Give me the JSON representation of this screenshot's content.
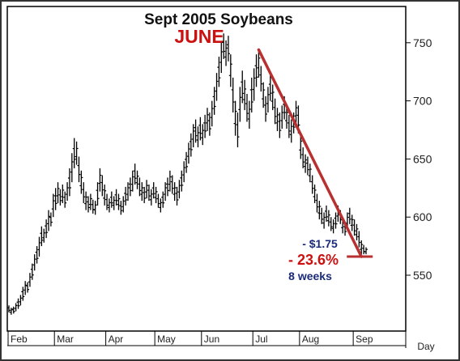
{
  "chart_data": {
    "type": "ohlc",
    "title": "Sept 2005 Soybeans",
    "annotation_month": "JUNE",
    "x_unit_label": "Day",
    "y_ticks": [
      550,
      600,
      650,
      700,
      750
    ],
    "ylim": [
      505,
      765
    ],
    "x_months": [
      "Feb",
      "Mar",
      "Apr",
      "May",
      "Jun",
      "Jul",
      "Aug",
      "Sep"
    ],
    "grid": false,
    "series": [
      {
        "values": [
          {
            "d": "Feb 01",
            "h": 524,
            "l": 518
          },
          {
            "d": "Feb 02",
            "h": 522,
            "l": 516
          },
          {
            "d": "Feb 03",
            "h": 523,
            "l": 517
          },
          {
            "d": "Feb 04",
            "h": 526,
            "l": 519
          },
          {
            "d": "Feb 07",
            "h": 530,
            "l": 521
          },
          {
            "d": "Feb 08",
            "h": 533,
            "l": 524
          },
          {
            "d": "Feb 09",
            "h": 540,
            "l": 528
          },
          {
            "d": "Feb 10",
            "h": 545,
            "l": 533
          },
          {
            "d": "Feb 11",
            "h": 544,
            "l": 535
          },
          {
            "d": "Feb 14",
            "h": 552,
            "l": 540
          },
          {
            "d": "Feb 15",
            "h": 560,
            "l": 546
          },
          {
            "d": "Feb 16",
            "h": 568,
            "l": 554
          },
          {
            "d": "Feb 17",
            "h": 575,
            "l": 560
          },
          {
            "d": "Feb 18",
            "h": 583,
            "l": 566
          },
          {
            "d": "Feb 21",
            "h": 592,
            "l": 575
          },
          {
            "d": "Feb 22",
            "h": 590,
            "l": 578
          },
          {
            "d": "Feb 23",
            "h": 598,
            "l": 582
          },
          {
            "d": "Feb 24",
            "h": 606,
            "l": 588
          },
          {
            "d": "Feb 25",
            "h": 604,
            "l": 592
          },
          {
            "d": "Feb 28",
            "h": 620,
            "l": 600
          },
          {
            "d": "Mar 01",
            "h": 625,
            "l": 606
          },
          {
            "d": "Mar 02",
            "h": 630,
            "l": 612
          },
          {
            "d": "Mar 03",
            "h": 624,
            "l": 610
          },
          {
            "d": "Mar 04",
            "h": 628,
            "l": 612
          },
          {
            "d": "Mar 07",
            "h": 622,
            "l": 608
          },
          {
            "d": "Mar 08",
            "h": 630,
            "l": 614
          },
          {
            "d": "Mar 09",
            "h": 642,
            "l": 618
          },
          {
            "d": "Mar 10",
            "h": 655,
            "l": 630
          },
          {
            "d": "Mar 11",
            "h": 668,
            "l": 642
          },
          {
            "d": "Mar 14",
            "h": 665,
            "l": 645
          },
          {
            "d": "Mar 15",
            "h": 652,
            "l": 630
          },
          {
            "d": "Mar 16",
            "h": 640,
            "l": 620
          },
          {
            "d": "Mar 17",
            "h": 630,
            "l": 612
          },
          {
            "d": "Mar 18",
            "h": 622,
            "l": 606
          },
          {
            "d": "Mar 21",
            "h": 618,
            "l": 604
          },
          {
            "d": "Mar 22",
            "h": 620,
            "l": 606
          },
          {
            "d": "Mar 23",
            "h": 615,
            "l": 603
          },
          {
            "d": "Mar 24",
            "h": 614,
            "l": 602
          },
          {
            "d": "Mar 28",
            "h": 630,
            "l": 610
          },
          {
            "d": "Mar 29",
            "h": 642,
            "l": 622
          },
          {
            "d": "Mar 30",
            "h": 636,
            "l": 618
          },
          {
            "d": "Mar 31",
            "h": 628,
            "l": 610
          },
          {
            "d": "Apr 01",
            "h": 620,
            "l": 606
          },
          {
            "d": "Apr 04",
            "h": 616,
            "l": 604
          },
          {
            "d": "Apr 05",
            "h": 622,
            "l": 608
          },
          {
            "d": "Apr 06",
            "h": 618,
            "l": 606
          },
          {
            "d": "Apr 07",
            "h": 624,
            "l": 610
          },
          {
            "d": "Apr 08",
            "h": 620,
            "l": 606
          },
          {
            "d": "Apr 11",
            "h": 614,
            "l": 602
          },
          {
            "d": "Apr 12",
            "h": 618,
            "l": 604
          },
          {
            "d": "Apr 13",
            "h": 626,
            "l": 610
          },
          {
            "d": "Apr 14",
            "h": 630,
            "l": 614
          },
          {
            "d": "Apr 15",
            "h": 634,
            "l": 618
          },
          {
            "d": "Apr 18",
            "h": 640,
            "l": 622
          },
          {
            "d": "Apr 19",
            "h": 646,
            "l": 628
          },
          {
            "d": "Apr 20",
            "h": 640,
            "l": 624
          },
          {
            "d": "Apr 21",
            "h": 634,
            "l": 618
          },
          {
            "d": "Apr 22",
            "h": 630,
            "l": 614
          },
          {
            "d": "Apr 25",
            "h": 626,
            "l": 612
          },
          {
            "d": "Apr 26",
            "h": 632,
            "l": 616
          },
          {
            "d": "Apr 27",
            "h": 628,
            "l": 614
          },
          {
            "d": "Apr 28",
            "h": 624,
            "l": 610
          },
          {
            "d": "Apr 29",
            "h": 630,
            "l": 616
          },
          {
            "d": "May 02",
            "h": 626,
            "l": 612
          },
          {
            "d": "May 03",
            "h": 620,
            "l": 608
          },
          {
            "d": "May 04",
            "h": 616,
            "l": 604
          },
          {
            "d": "May 05",
            "h": 622,
            "l": 608
          },
          {
            "d": "May 06",
            "h": 630,
            "l": 614
          },
          {
            "d": "May 09",
            "h": 634,
            "l": 618
          },
          {
            "d": "May 10",
            "h": 640,
            "l": 622
          },
          {
            "d": "May 11",
            "h": 636,
            "l": 620
          },
          {
            "d": "May 12",
            "h": 630,
            "l": 614
          },
          {
            "d": "May 13",
            "h": 626,
            "l": 610
          },
          {
            "d": "May 16",
            "h": 632,
            "l": 616
          },
          {
            "d": "May 17",
            "h": 640,
            "l": 622
          },
          {
            "d": "May 18",
            "h": 648,
            "l": 630
          },
          {
            "d": "May 19",
            "h": 656,
            "l": 638
          },
          {
            "d": "May 20",
            "h": 664,
            "l": 646
          },
          {
            "d": "May 23",
            "h": 672,
            "l": 652
          },
          {
            "d": "May 24",
            "h": 680,
            "l": 660
          },
          {
            "d": "May 25",
            "h": 684,
            "l": 664
          },
          {
            "d": "May 26",
            "h": 678,
            "l": 660
          },
          {
            "d": "May 27",
            "h": 686,
            "l": 666
          },
          {
            "d": "Jun 01",
            "h": 680,
            "l": 662
          },
          {
            "d": "Jun 02",
            "h": 688,
            "l": 668
          },
          {
            "d": "Jun 03",
            "h": 694,
            "l": 674
          },
          {
            "d": "Jun 06",
            "h": 690,
            "l": 670
          },
          {
            "d": "Jun 07",
            "h": 700,
            "l": 678
          },
          {
            "d": "Jun 08",
            "h": 712,
            "l": 688
          },
          {
            "d": "Jun 09",
            "h": 724,
            "l": 700
          },
          {
            "d": "Jun 10",
            "h": 738,
            "l": 712
          },
          {
            "d": "Jun 13",
            "h": 750,
            "l": 724
          },
          {
            "d": "Jun 14",
            "h": 758,
            "l": 736
          },
          {
            "d": "Jun 15",
            "h": 752,
            "l": 730
          },
          {
            "d": "Jun 16",
            "h": 756,
            "l": 734
          },
          {
            "d": "Jun 17",
            "h": 740,
            "l": 712
          },
          {
            "d": "Jun 20",
            "h": 720,
            "l": 690
          },
          {
            "d": "Jun 21",
            "h": 700,
            "l": 670
          },
          {
            "d": "Jun 22",
            "h": 690,
            "l": 660
          },
          {
            "d": "Jun 23",
            "h": 712,
            "l": 682
          },
          {
            "d": "Jun 24",
            "h": 726,
            "l": 698
          },
          {
            "d": "Jun 27",
            "h": 718,
            "l": 692
          },
          {
            "d": "Jun 28",
            "h": 706,
            "l": 682
          },
          {
            "d": "Jun 29",
            "h": 700,
            "l": 676
          },
          {
            "d": "Jun 30",
            "h": 720,
            "l": 690
          },
          {
            "d": "Jul 01",
            "h": 728,
            "l": 700
          },
          {
            "d": "Jul 05",
            "h": 740,
            "l": 712
          },
          {
            "d": "Jul 06",
            "h": 744,
            "l": 720
          },
          {
            "d": "Jul 07",
            "h": 730,
            "l": 708
          },
          {
            "d": "Jul 08",
            "h": 716,
            "l": 694
          },
          {
            "d": "Jul 11",
            "h": 704,
            "l": 682
          },
          {
            "d": "Jul 12",
            "h": 712,
            "l": 690
          },
          {
            "d": "Jul 13",
            "h": 722,
            "l": 700
          },
          {
            "d": "Jul 14",
            "h": 714,
            "l": 692
          },
          {
            "d": "Jul 15",
            "h": 702,
            "l": 680
          },
          {
            "d": "Jul 18",
            "h": 694,
            "l": 674
          },
          {
            "d": "Jul 19",
            "h": 690,
            "l": 668
          },
          {
            "d": "Jul 20",
            "h": 696,
            "l": 676
          },
          {
            "d": "Jul 21",
            "h": 704,
            "l": 684
          },
          {
            "d": "Jul 22",
            "h": 696,
            "l": 676
          },
          {
            "d": "Jul 25",
            "h": 688,
            "l": 668
          },
          {
            "d": "Jul 26",
            "h": 684,
            "l": 664
          },
          {
            "d": "Jul 27",
            "h": 690,
            "l": 672
          },
          {
            "d": "Jul 28",
            "h": 700,
            "l": 680
          },
          {
            "d": "Jul 29",
            "h": 696,
            "l": 672
          },
          {
            "d": "Aug 01",
            "h": 672,
            "l": 650
          },
          {
            "d": "Aug 02",
            "h": 660,
            "l": 642
          },
          {
            "d": "Aug 03",
            "h": 654,
            "l": 638
          },
          {
            "d": "Aug 04",
            "h": 652,
            "l": 636
          },
          {
            "d": "Aug 05",
            "h": 646,
            "l": 630
          },
          {
            "d": "Aug 08",
            "h": 636,
            "l": 620
          },
          {
            "d": "Aug 09",
            "h": 628,
            "l": 612
          },
          {
            "d": "Aug 10",
            "h": 620,
            "l": 604
          },
          {
            "d": "Aug 11",
            "h": 614,
            "l": 598
          },
          {
            "d": "Aug 12",
            "h": 608,
            "l": 594
          },
          {
            "d": "Aug 15",
            "h": 604,
            "l": 590
          },
          {
            "d": "Aug 16",
            "h": 610,
            "l": 596
          },
          {
            "d": "Aug 17",
            "h": 606,
            "l": 592
          },
          {
            "d": "Aug 18",
            "h": 600,
            "l": 588
          },
          {
            "d": "Aug 19",
            "h": 598,
            "l": 586
          },
          {
            "d": "Aug 22",
            "h": 604,
            "l": 590
          },
          {
            "d": "Aug 23",
            "h": 610,
            "l": 596
          },
          {
            "d": "Aug 24",
            "h": 606,
            "l": 594
          },
          {
            "d": "Aug 25",
            "h": 600,
            "l": 586
          },
          {
            "d": "Aug 26",
            "h": 596,
            "l": 584
          },
          {
            "d": "Aug 29",
            "h": 604,
            "l": 590
          },
          {
            "d": "Aug 30",
            "h": 608,
            "l": 594
          },
          {
            "d": "Aug 31",
            "h": 602,
            "l": 588
          },
          {
            "d": "Sep 01",
            "h": 598,
            "l": 584
          },
          {
            "d": "Sep 02",
            "h": 594,
            "l": 580
          },
          {
            "d": "Sep 06",
            "h": 588,
            "l": 574
          },
          {
            "d": "Sep 07",
            "h": 580,
            "l": 568
          },
          {
            "d": "Sep 08",
            "h": 576,
            "l": 568
          },
          {
            "d": "Sep 09",
            "h": 574,
            "l": 568
          }
        ]
      }
    ],
    "annotations": {
      "drop_amount": "- $1.75",
      "drop_percent": "- 23.6%",
      "duration": "8 weeks",
      "trendline": {
        "from": {
          "d": "Jul 06",
          "v": 744
        },
        "to": {
          "d": "Sep 07",
          "v": 566
        },
        "color": "#b83030"
      },
      "colors": {
        "title": "#111111",
        "june": "#cc1111",
        "percent": "#cc1111",
        "drop_text": "#1a2a7a",
        "bars": "#000000"
      }
    }
  }
}
